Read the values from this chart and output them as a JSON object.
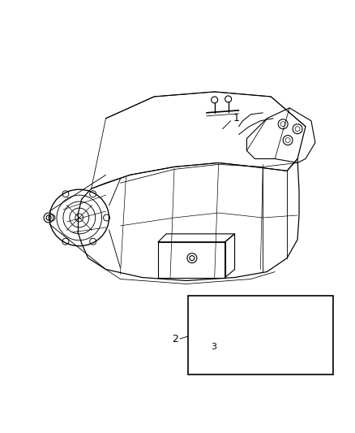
{
  "background_color": "#ffffff",
  "fig_width": 4.38,
  "fig_height": 5.33,
  "dpi": 100,
  "label_1": "1",
  "label_2": "2",
  "label_3": "3",
  "line_color": "#000000",
  "lw": 0.8
}
